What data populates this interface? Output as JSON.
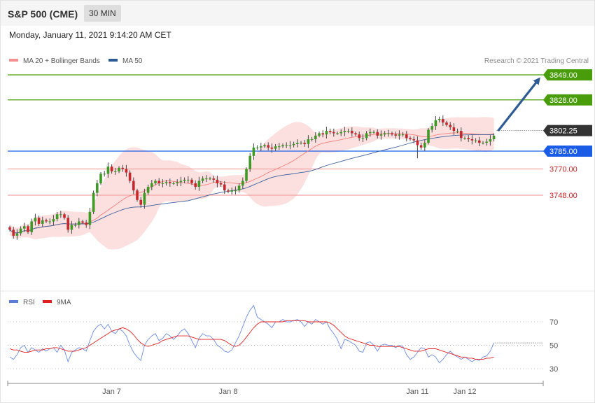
{
  "header": {
    "title": "S&P 500 (CME)",
    "interval": "30 MIN",
    "timestamp": "Monday, January 11, 2021 9:14:20 AM CET"
  },
  "chart_data": [
    {
      "type": "candlestick",
      "ylim": [
        3705,
        3852
      ],
      "legend": [
        {
          "name": "MA 20 + Bollinger Bands",
          "color": "#f4918f"
        },
        {
          "name": "MA 50",
          "color": "#2f5b94"
        }
      ],
      "credit": "Research © 2021 Trading Central",
      "levels": [
        {
          "label": "3849.00",
          "value": 3849,
          "color": "#4a9d0a",
          "role": "resistance"
        },
        {
          "label": "3828.00",
          "value": 3828,
          "color": "#4a9d0a",
          "role": "resistance"
        },
        {
          "label": "3802.25",
          "value": 3802.25,
          "color": "#333333",
          "role": "last-price"
        },
        {
          "label": "3785.00",
          "value": 3785,
          "color": "#1a5ce6",
          "role": "pivot"
        },
        {
          "label": "3770.00",
          "value": 3770,
          "color": "#c81e1e",
          "role": "support"
        },
        {
          "label": "3748.00",
          "value": 3748,
          "color": "#c81e1e",
          "role": "support"
        }
      ],
      "closes": [
        3719,
        3714,
        3716,
        3720,
        3722,
        3717,
        3726,
        3729,
        3724,
        3727,
        3726,
        3726,
        3728,
        3732,
        3732,
        3729,
        3719,
        3723,
        3723,
        3726,
        3725,
        3723,
        3734,
        3750,
        3758,
        3766,
        3766,
        3772,
        3768,
        3768,
        3771,
        3770,
        3767,
        3760,
        3752,
        3744,
        3740,
        3750,
        3755,
        3758,
        3760,
        3758,
        3758,
        3759,
        3758,
        3758,
        3759,
        3760,
        3761,
        3761,
        3758,
        3755,
        3760,
        3762,
        3762,
        3762,
        3761,
        3758,
        3757,
        3752,
        3751,
        3752,
        3752,
        3756,
        3760,
        3770,
        3781,
        3788,
        3788,
        3789,
        3790,
        3788,
        3787,
        3789,
        3789,
        3790,
        3790,
        3790,
        3791,
        3792,
        3792,
        3791,
        3795,
        3795,
        3798,
        3800,
        3799,
        3802,
        3801,
        3800,
        3800,
        3801,
        3802,
        3802,
        3800,
        3799,
        3796,
        3796,
        3800,
        3801,
        3801,
        3798,
        3799,
        3800,
        3800,
        3799,
        3798,
        3799,
        3799,
        3796,
        3795,
        3794,
        3790,
        3788,
        3792,
        3803,
        3806,
        3811,
        3812,
        3809,
        3807,
        3805,
        3802,
        3802,
        3796,
        3796,
        3795,
        3794,
        3794,
        3792,
        3792,
        3793,
        3795,
        3798
      ],
      "sessions": [
        {
          "label": "Jan 7",
          "index": 28
        },
        {
          "label": "Jan 8",
          "index": 60
        },
        {
          "label": "Jan 11",
          "index": 112
        },
        {
          "label": "Jan 12",
          "index": 125
        }
      ],
      "arrow": {
        "from": 3802,
        "to": 3845
      }
    },
    {
      "type": "line",
      "title": "",
      "legend": [
        {
          "name": "RSI",
          "color": "#5b7fd6"
        },
        {
          "name": "9MA",
          "color": "#e02020"
        }
      ],
      "ylim": [
        15,
        88
      ],
      "ticks": [
        "70",
        "50",
        "30"
      ],
      "tick_values": [
        70,
        50,
        30
      ],
      "rsi": [
        40,
        38,
        42,
        48,
        50,
        44,
        48,
        46,
        44,
        47,
        45,
        47,
        48,
        44,
        50,
        46,
        36,
        44,
        46,
        48,
        47,
        45,
        54,
        62,
        66,
        68,
        64,
        68,
        62,
        60,
        64,
        62,
        58,
        50,
        44,
        40,
        37,
        50,
        55,
        58,
        60,
        54,
        56,
        60,
        58,
        55,
        58,
        62,
        64,
        60,
        54,
        48,
        56,
        60,
        58,
        58,
        55,
        50,
        48,
        45,
        44,
        46,
        52,
        58,
        66,
        74,
        80,
        84,
        74,
        72,
        70,
        68,
        65,
        70,
        70,
        72,
        70,
        70,
        71,
        72,
        70,
        66,
        70,
        68,
        72,
        70,
        68,
        70,
        64,
        60,
        55,
        47,
        55,
        54,
        52,
        50,
        45,
        44,
        52,
        53,
        50,
        45,
        50,
        51,
        50,
        50,
        48,
        50,
        49,
        42,
        38,
        40,
        44,
        48,
        47,
        40,
        42,
        40,
        35,
        38,
        42,
        45,
        42,
        40,
        38,
        40,
        38,
        36,
        38,
        37,
        40,
        41,
        45,
        52
      ],
      "ma9": [
        47,
        46,
        46,
        45,
        44,
        44,
        45,
        46,
        46,
        46,
        47,
        47,
        48,
        48,
        47,
        46,
        45,
        45,
        45,
        46,
        47,
        48,
        50,
        52,
        54,
        56,
        58,
        60,
        62,
        63,
        64,
        65,
        64,
        62,
        59,
        55,
        52,
        50,
        49,
        50,
        51,
        52,
        54,
        55,
        56,
        57,
        58,
        58,
        58,
        58,
        57,
        56,
        55,
        55,
        55,
        55,
        55,
        55,
        55,
        54,
        52,
        50,
        49,
        50,
        53,
        57,
        61,
        65,
        68,
        70,
        70,
        70,
        70,
        70,
        70,
        70,
        71,
        71,
        71,
        71,
        71,
        71,
        70,
        70,
        70,
        70,
        70,
        70,
        69,
        67,
        64,
        61,
        58,
        56,
        55,
        54,
        53,
        52,
        51,
        50,
        50,
        49,
        49,
        49,
        49,
        49,
        49,
        49,
        48,
        47,
        46,
        45,
        45,
        45,
        46,
        47,
        47,
        47,
        46,
        45,
        44,
        43,
        42,
        41,
        40,
        40,
        39,
        39,
        38,
        38,
        38,
        39,
        39,
        40
      ]
    }
  ]
}
